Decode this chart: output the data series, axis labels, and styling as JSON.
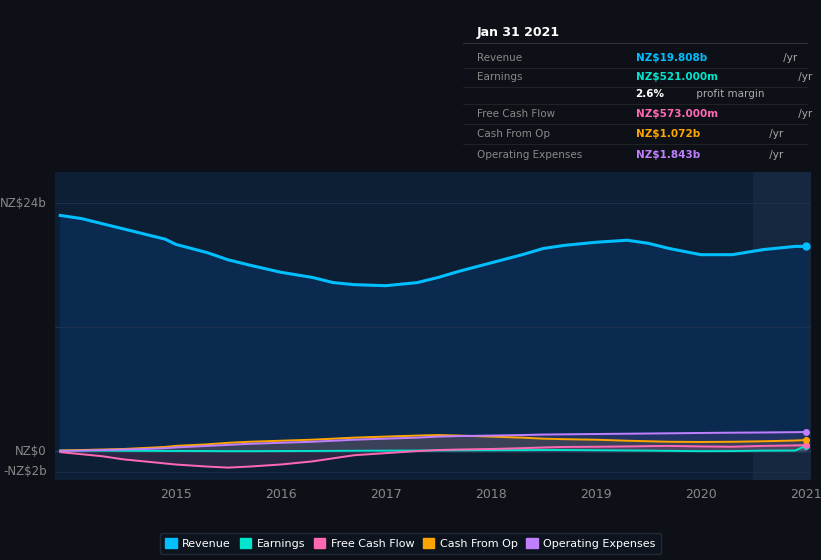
{
  "bg_color": "#0d1117",
  "plot_bg_color": "#0d1f35",
  "plot_bg_highlight": "#162840",
  "title_box_bg": "#080e14",
  "ylabel_top": "NZ$24b",
  "ylabel_zero": "NZ$0",
  "ylabel_neg": "-NZ$2b",
  "ylim": [
    -2.8,
    27
  ],
  "years": [
    2013.9,
    2014.1,
    2014.3,
    2014.5,
    2014.7,
    2014.9,
    2015.0,
    2015.3,
    2015.5,
    2015.7,
    2016.0,
    2016.3,
    2016.5,
    2016.7,
    2017.0,
    2017.3,
    2017.5,
    2017.7,
    2018.0,
    2018.3,
    2018.5,
    2018.7,
    2019.0,
    2019.3,
    2019.5,
    2019.7,
    2020.0,
    2020.3,
    2020.6,
    2020.9,
    2021.0
  ],
  "revenue": [
    22.8,
    22.5,
    22.0,
    21.5,
    21.0,
    20.5,
    20.0,
    19.2,
    18.5,
    18.0,
    17.3,
    16.8,
    16.3,
    16.1,
    16.0,
    16.3,
    16.8,
    17.4,
    18.2,
    19.0,
    19.6,
    19.9,
    20.2,
    20.4,
    20.1,
    19.6,
    19.0,
    19.0,
    19.5,
    19.8,
    19.808
  ],
  "earnings": [
    0.05,
    0.04,
    0.04,
    0.03,
    0.02,
    0.01,
    0.01,
    0.0,
    -0.01,
    -0.01,
    0.0,
    0.01,
    0.02,
    0.03,
    0.04,
    0.05,
    0.06,
    0.07,
    0.08,
    0.09,
    0.1,
    0.1,
    0.08,
    0.06,
    0.04,
    0.02,
    -0.01,
    0.0,
    0.04,
    0.05,
    0.521
  ],
  "free_cash_flow": [
    -0.1,
    -0.3,
    -0.5,
    -0.8,
    -1.0,
    -1.2,
    -1.3,
    -1.5,
    -1.6,
    -1.5,
    -1.3,
    -1.0,
    -0.7,
    -0.4,
    -0.2,
    0.0,
    0.1,
    0.15,
    0.2,
    0.28,
    0.35,
    0.4,
    0.42,
    0.45,
    0.48,
    0.5,
    0.45,
    0.42,
    0.5,
    0.55,
    0.573
  ],
  "cash_from_op": [
    0.05,
    0.1,
    0.15,
    0.2,
    0.3,
    0.4,
    0.5,
    0.65,
    0.8,
    0.9,
    1.0,
    1.1,
    1.2,
    1.3,
    1.4,
    1.5,
    1.55,
    1.5,
    1.4,
    1.3,
    1.2,
    1.15,
    1.1,
    1.0,
    0.95,
    0.9,
    0.88,
    0.9,
    0.95,
    1.02,
    1.072
  ],
  "operating_expenses": [
    0.02,
    0.05,
    0.1,
    0.15,
    0.2,
    0.28,
    0.35,
    0.5,
    0.6,
    0.7,
    0.8,
    0.9,
    1.0,
    1.1,
    1.2,
    1.3,
    1.4,
    1.45,
    1.5,
    1.55,
    1.6,
    1.62,
    1.65,
    1.68,
    1.7,
    1.72,
    1.75,
    1.78,
    1.8,
    1.83,
    1.843
  ],
  "revenue_color": "#00bfff",
  "earnings_color": "#00e5cc",
  "free_cash_flow_color": "#ff69b4",
  "cash_from_op_color": "#ffa500",
  "operating_expenses_color": "#bf7fff",
  "revenue_fill": "#0a2a50",
  "xtick_labels": [
    "2015",
    "2016",
    "2017",
    "2018",
    "2019",
    "2020",
    "2021"
  ],
  "xtick_positions": [
    2015,
    2016,
    2017,
    2018,
    2019,
    2020,
    2021
  ],
  "legend_items": [
    {
      "label": "Revenue",
      "color": "#00bfff"
    },
    {
      "label": "Earnings",
      "color": "#00e5cc"
    },
    {
      "label": "Free Cash Flow",
      "color": "#ff69b4"
    },
    {
      "label": "Cash From Op",
      "color": "#ffa500"
    },
    {
      "label": "Operating Expenses",
      "color": "#bf7fff"
    }
  ],
  "tooltip": {
    "title": "Jan 31 2021",
    "rows": [
      {
        "label": "Revenue",
        "value": "NZ$19.808b",
        "value_color": "#00bfff",
        "unit": " /yr"
      },
      {
        "label": "Earnings",
        "value": "NZ$521.000m",
        "value_color": "#00e5cc",
        "unit": " /yr"
      },
      {
        "label": "",
        "value": "2.6%",
        "value_color": "#ffffff",
        "unit": " profit margin"
      },
      {
        "label": "Free Cash Flow",
        "value": "NZ$573.000m",
        "value_color": "#ff69b4",
        "unit": " /yr"
      },
      {
        "label": "Cash From Op",
        "value": "NZ$1.072b",
        "value_color": "#ffa500",
        "unit": " /yr"
      },
      {
        "label": "Operating Expenses",
        "value": "NZ$1.843b",
        "value_color": "#bf7fff",
        "unit": " /yr"
      }
    ]
  }
}
